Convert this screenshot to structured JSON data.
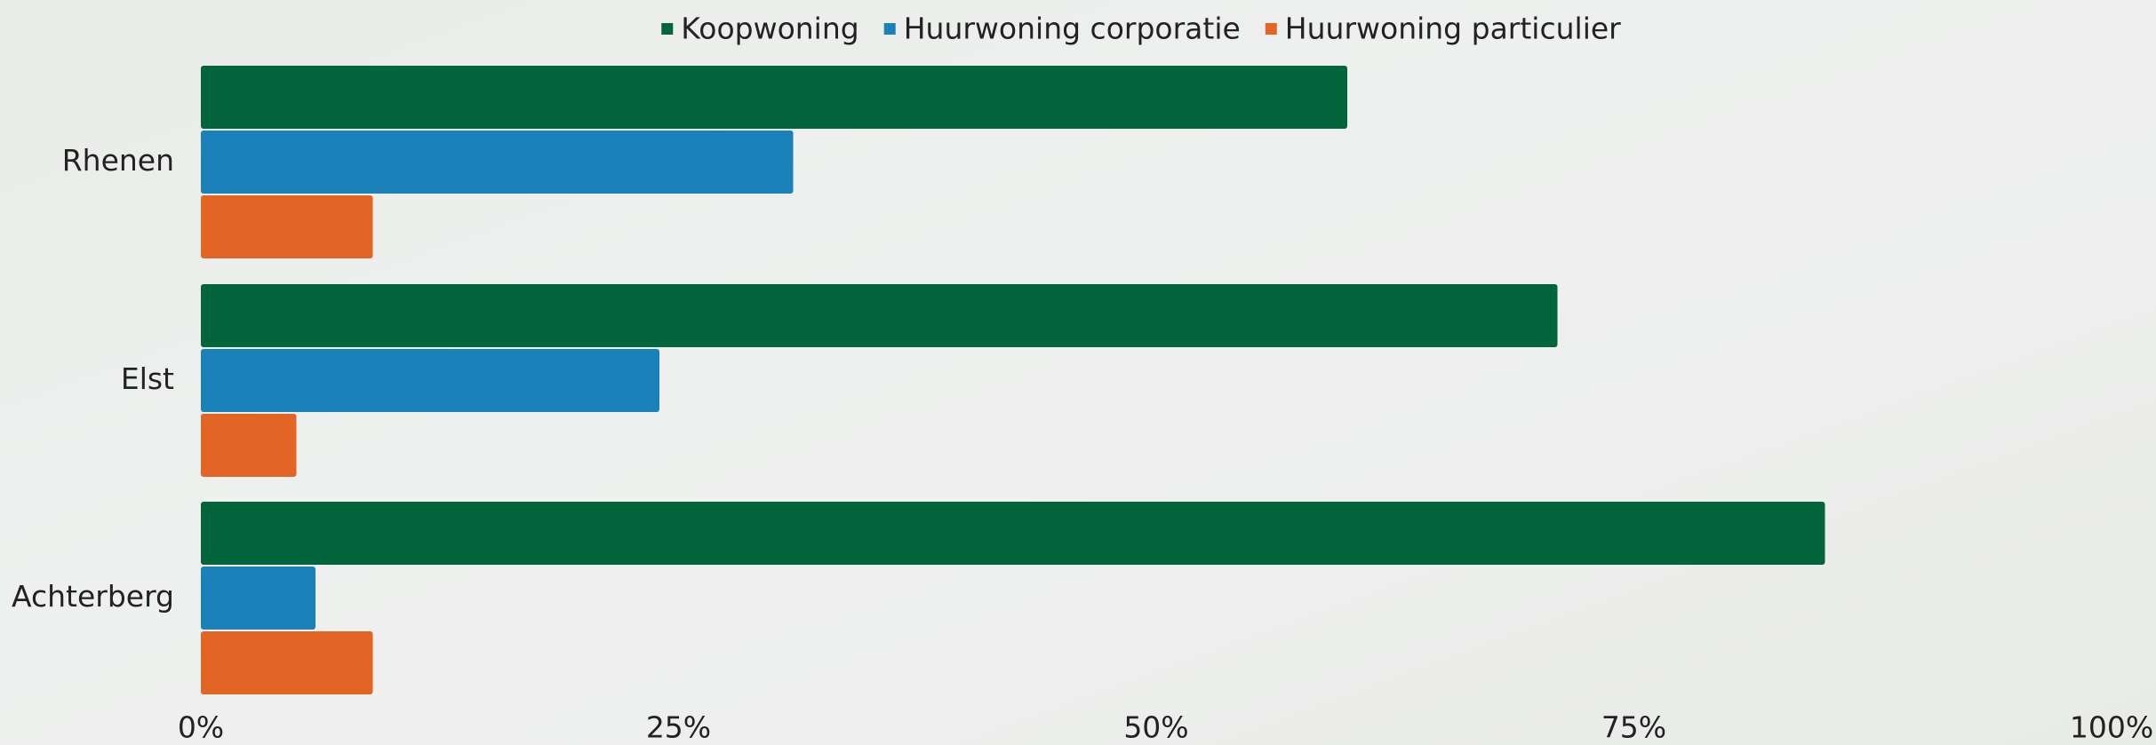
{
  "chart_data": {
    "type": "hbar",
    "categories": [
      "Rhenen",
      "Elst",
      "Achterberg"
    ],
    "series": [
      {
        "name": "Koopwoning",
        "color": "#03653c",
        "values": [
          60,
          71,
          85
        ]
      },
      {
        "name": "Huurwoning corporatie",
        "color": "#1a82b8",
        "values": [
          31,
          24,
          6
        ]
      },
      {
        "name": "Huurwoning particulier",
        "color": "#e36526",
        "values": [
          9,
          5,
          9
        ]
      }
    ],
    "xlim": [
      0,
      100
    ],
    "xticks": [
      {
        "value": 0,
        "label": "0%"
      },
      {
        "value": 25,
        "label": "25%"
      },
      {
        "value": 50,
        "label": "50%"
      },
      {
        "value": 75,
        "label": "75%"
      },
      {
        "value": 100,
        "label": "100%"
      }
    ],
    "legend": "top"
  }
}
